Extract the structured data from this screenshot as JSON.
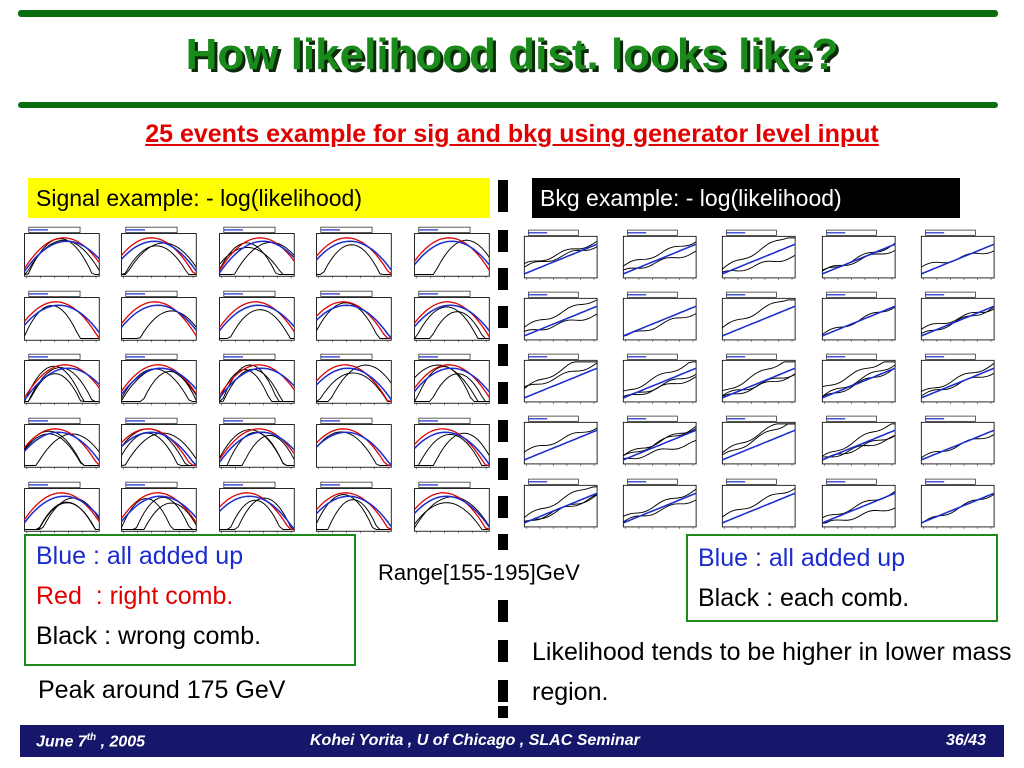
{
  "title": "How likelihood dist. looks like?",
  "subtitle": "25 events example for sig and bkg using generator level input",
  "signal_label": "Signal example: - log(likelihood)",
  "bkg_label": "Bkg example: - log(likelihood)",
  "signal_legend": {
    "blue": "Blue : all added up",
    "red": "Red  : right comb.",
    "black": "Black : wrong comb."
  },
  "bkg_legend": {
    "blue": "Blue : all added up",
    "black": "Black : each comb."
  },
  "range_text": "Range[155-195]GeV",
  "peak_text": "Peak around 175 GeV",
  "trend_text": "Likelihood tends to be higher in lower mass region.",
  "footer": {
    "date_main": "June 7",
    "date_sup": "th",
    "date_tail": " , 2005",
    "center": "Kohei Yorita , U of Chicago , SLAC Seminar",
    "page": "36/43"
  },
  "colors": {
    "green": "#1a8a1a",
    "red": "#e00000",
    "blue": "#1b2ccf",
    "navy": "#16166a",
    "yellow": "#ffff00"
  }
}
